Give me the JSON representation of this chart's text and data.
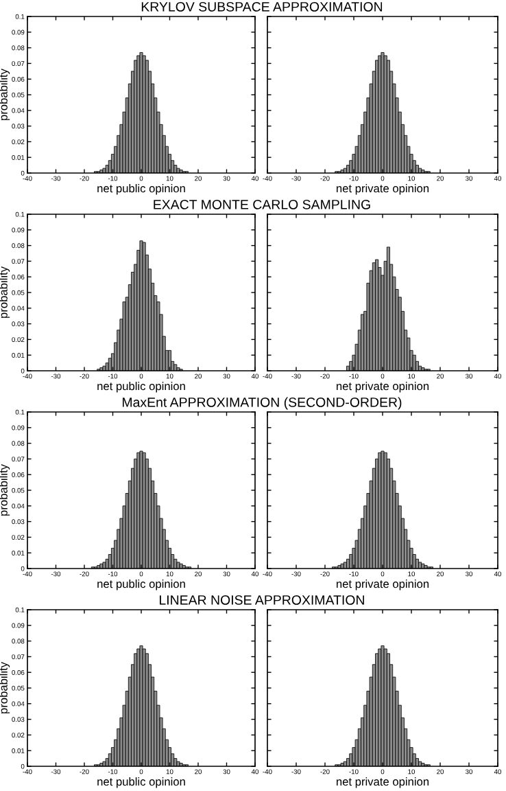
{
  "chart_data": [
    {
      "type": "histogram",
      "title": "KRYLOV SUBSPACE APPROXIMATION",
      "xlabel": "net public opinion",
      "ylabel": "probability",
      "color": "#8c8c8c",
      "xlim": [
        -40,
        40
      ],
      "ylim": [
        0,
        0.1
      ],
      "xticks": [
        -40,
        -30,
        -20,
        -10,
        0,
        10,
        20,
        30,
        40
      ],
      "yticks": [
        0,
        0.01,
        0.02,
        0.03,
        0.04,
        0.05,
        0.06,
        0.07,
        0.08,
        0.09,
        0.1
      ],
      "bins": [
        -16.5,
        -15.5,
        -14.5,
        -13.5,
        -12.5,
        -11.5,
        -10.5,
        -9.5,
        -8.5,
        -7.5,
        -6.5,
        -5.5,
        -4.5,
        -3.5,
        -2.5,
        -1.5,
        -0.5,
        0.5,
        1.5,
        2.5,
        3.5,
        4.5,
        5.5,
        6.5,
        7.5,
        8.5,
        9.5,
        10.5,
        11.5,
        12.5,
        13.5,
        14.5,
        15.5,
        16.5
      ],
      "values": [
        0.001,
        0.001,
        0.002,
        0.003,
        0.005,
        0.008,
        0.012,
        0.017,
        0.024,
        0.031,
        0.039,
        0.048,
        0.057,
        0.065,
        0.072,
        0.075,
        0.077,
        0.075,
        0.072,
        0.065,
        0.057,
        0.048,
        0.039,
        0.031,
        0.024,
        0.017,
        0.012,
        0.008,
        0.005,
        0.003,
        0.002,
        0.001,
        0.001
      ]
    },
    {
      "type": "histogram",
      "xlabel": "net private opinion",
      "color": "#8c8c8c",
      "xlim": [
        -40,
        40
      ],
      "ylim": [
        0,
        0.1
      ],
      "xticks": [
        -40,
        -30,
        -20,
        -10,
        0,
        10,
        20,
        30,
        40
      ],
      "yticks": [
        0,
        0.01,
        0.02,
        0.03,
        0.04,
        0.05,
        0.06,
        0.07,
        0.08,
        0.09,
        0.1
      ],
      "tick_labels": "x",
      "bins": [
        -16.5,
        -15.5,
        -14.5,
        -13.5,
        -12.5,
        -11.5,
        -10.5,
        -9.5,
        -8.5,
        -7.5,
        -6.5,
        -5.5,
        -4.5,
        -3.5,
        -2.5,
        -1.5,
        -0.5,
        0.5,
        1.5,
        2.5,
        3.5,
        4.5,
        5.5,
        6.5,
        7.5,
        8.5,
        9.5,
        10.5,
        11.5,
        12.5,
        13.5,
        14.5,
        15.5,
        16.5
      ],
      "values": [
        0.001,
        0.001,
        0.002,
        0.003,
        0.005,
        0.008,
        0.012,
        0.017,
        0.024,
        0.031,
        0.039,
        0.048,
        0.057,
        0.065,
        0.072,
        0.075,
        0.077,
        0.075,
        0.072,
        0.065,
        0.057,
        0.048,
        0.039,
        0.031,
        0.024,
        0.017,
        0.012,
        0.008,
        0.005,
        0.003,
        0.002,
        0.001,
        0.001
      ]
    },
    {
      "type": "histogram",
      "title": "EXACT MONTE CARLO SAMPLING",
      "xlabel": "net public opinion",
      "ylabel": "probability",
      "color": "#8c8c8c",
      "xlim": [
        -40,
        40
      ],
      "ylim": [
        0,
        0.1
      ],
      "xticks": [
        -40,
        -30,
        -20,
        -10,
        0,
        10,
        20,
        30,
        40
      ],
      "yticks": [
        0,
        0.01,
        0.02,
        0.03,
        0.04,
        0.05,
        0.06,
        0.07,
        0.08,
        0.09,
        0.1
      ],
      "bins": [
        -15.5,
        -14.5,
        -13.5,
        -12.5,
        -11.5,
        -10.5,
        -9.5,
        -8.5,
        -7.5,
        -6.5,
        -5.5,
        -4.5,
        -3.5,
        -2.5,
        -1.5,
        -0.5,
        0.5,
        1.5,
        2.5,
        3.5,
        4.5,
        5.5,
        6.5,
        7.5,
        8.5,
        9.5,
        10.5,
        11.5,
        12.5,
        13.5,
        14.5
      ],
      "values": [
        0.001,
        0.002,
        0.003,
        0.005,
        0.008,
        0.011,
        0.018,
        0.026,
        0.033,
        0.044,
        0.047,
        0.055,
        0.063,
        0.068,
        0.077,
        0.083,
        0.082,
        0.074,
        0.065,
        0.056,
        0.048,
        0.044,
        0.036,
        0.022,
        0.013,
        0.013,
        0.006,
        0.004,
        0.002,
        0.001
      ]
    },
    {
      "type": "histogram",
      "xlabel": "net private opinion",
      "color": "#8c8c8c",
      "xlim": [
        -40,
        40
      ],
      "ylim": [
        0,
        0.1
      ],
      "xticks": [
        -40,
        -30,
        -20,
        -10,
        0,
        10,
        20,
        30,
        40
      ],
      "yticks": [
        0,
        0.01,
        0.02,
        0.03,
        0.04,
        0.05,
        0.06,
        0.07,
        0.08,
        0.09,
        0.1
      ],
      "tick_labels": "x",
      "bins": [
        -12.5,
        -11.5,
        -10.5,
        -9.5,
        -8.5,
        -7.5,
        -6.5,
        -5.5,
        -4.5,
        -3.5,
        -2.5,
        -1.5,
        -0.5,
        0.5,
        1.5,
        2.5,
        3.5,
        4.5,
        5.5,
        6.5,
        7.5,
        8.5,
        9.5,
        10.5,
        11.5,
        12.5,
        13.5,
        14.5,
        15.5,
        16.5
      ],
      "values": [
        0.003,
        0.006,
        0.01,
        0.017,
        0.026,
        0.036,
        0.038,
        0.056,
        0.064,
        0.069,
        0.071,
        0.066,
        0.061,
        0.07,
        0.079,
        0.068,
        0.06,
        0.052,
        0.047,
        0.038,
        0.026,
        0.021,
        0.013,
        0.01,
        0.006,
        0.003,
        0.002,
        0.001,
        0.001
      ]
    },
    {
      "type": "histogram",
      "title": "MaxEnt APPROXIMATION (SECOND-ORDER)",
      "xlabel": "net public opinion",
      "ylabel": "probability",
      "color": "#8c8c8c",
      "xlim": [
        -40,
        40
      ],
      "ylim": [
        0,
        0.1
      ],
      "xticks": [
        -40,
        -30,
        -20,
        -10,
        0,
        10,
        20,
        30,
        40
      ],
      "yticks": [
        0,
        0.01,
        0.02,
        0.03,
        0.04,
        0.05,
        0.06,
        0.07,
        0.08,
        0.09,
        0.1
      ],
      "bins": [
        -17.5,
        -16.5,
        -15.5,
        -14.5,
        -13.5,
        -12.5,
        -11.5,
        -10.5,
        -9.5,
        -8.5,
        -7.5,
        -6.5,
        -5.5,
        -4.5,
        -3.5,
        -2.5,
        -1.5,
        -0.5,
        0.5,
        1.5,
        2.5,
        3.5,
        4.5,
        5.5,
        6.5,
        7.5,
        8.5,
        9.5,
        10.5,
        11.5,
        12.5,
        13.5,
        14.5,
        15.5,
        16.5,
        17.5
      ],
      "values": [
        0.001,
        0.001,
        0.002,
        0.003,
        0.004,
        0.006,
        0.009,
        0.013,
        0.018,
        0.025,
        0.032,
        0.04,
        0.048,
        0.056,
        0.064,
        0.07,
        0.074,
        0.075,
        0.074,
        0.07,
        0.064,
        0.056,
        0.048,
        0.04,
        0.032,
        0.025,
        0.018,
        0.013,
        0.009,
        0.006,
        0.004,
        0.003,
        0.002,
        0.001,
        0.001
      ]
    },
    {
      "type": "histogram",
      "xlabel": "net private opinion",
      "color": "#8c8c8c",
      "xlim": [
        -40,
        40
      ],
      "ylim": [
        0,
        0.1
      ],
      "xticks": [
        -40,
        -30,
        -20,
        -10,
        0,
        10,
        20,
        30,
        40
      ],
      "yticks": [
        0,
        0.01,
        0.02,
        0.03,
        0.04,
        0.05,
        0.06,
        0.07,
        0.08,
        0.09,
        0.1
      ],
      "tick_labels": "x",
      "bins": [
        -17.5,
        -16.5,
        -15.5,
        -14.5,
        -13.5,
        -12.5,
        -11.5,
        -10.5,
        -9.5,
        -8.5,
        -7.5,
        -6.5,
        -5.5,
        -4.5,
        -3.5,
        -2.5,
        -1.5,
        -0.5,
        0.5,
        1.5,
        2.5,
        3.5,
        4.5,
        5.5,
        6.5,
        7.5,
        8.5,
        9.5,
        10.5,
        11.5,
        12.5,
        13.5,
        14.5,
        15.5,
        16.5,
        17.5
      ],
      "values": [
        0.001,
        0.001,
        0.002,
        0.003,
        0.004,
        0.006,
        0.009,
        0.013,
        0.018,
        0.025,
        0.032,
        0.04,
        0.048,
        0.056,
        0.064,
        0.07,
        0.074,
        0.075,
        0.074,
        0.07,
        0.064,
        0.056,
        0.048,
        0.04,
        0.032,
        0.025,
        0.018,
        0.013,
        0.009,
        0.006,
        0.004,
        0.003,
        0.002,
        0.001,
        0.001
      ]
    },
    {
      "type": "histogram",
      "title": "LINEAR NOISE APPROXIMATION",
      "xlabel": "net public opinion",
      "ylabel": "probability",
      "color": "#8c8c8c",
      "xlim": [
        -40,
        40
      ],
      "ylim": [
        0,
        0.1
      ],
      "xticks": [
        -40,
        -30,
        -20,
        -10,
        0,
        10,
        20,
        30,
        40
      ],
      "yticks": [
        0,
        0.01,
        0.02,
        0.03,
        0.04,
        0.05,
        0.06,
        0.07,
        0.08,
        0.09,
        0.1
      ],
      "bins": [
        -16.5,
        -15.5,
        -14.5,
        -13.5,
        -12.5,
        -11.5,
        -10.5,
        -9.5,
        -8.5,
        -7.5,
        -6.5,
        -5.5,
        -4.5,
        -3.5,
        -2.5,
        -1.5,
        -0.5,
        0.5,
        1.5,
        2.5,
        3.5,
        4.5,
        5.5,
        6.5,
        7.5,
        8.5,
        9.5,
        10.5,
        11.5,
        12.5,
        13.5,
        14.5,
        15.5,
        16.5
      ],
      "values": [
        0.001,
        0.001,
        0.002,
        0.003,
        0.005,
        0.008,
        0.012,
        0.017,
        0.024,
        0.031,
        0.039,
        0.048,
        0.057,
        0.065,
        0.072,
        0.075,
        0.077,
        0.075,
        0.072,
        0.065,
        0.057,
        0.048,
        0.039,
        0.031,
        0.024,
        0.017,
        0.012,
        0.008,
        0.005,
        0.003,
        0.002,
        0.001,
        0.001
      ]
    },
    {
      "type": "histogram",
      "xlabel": "net private opinion",
      "color": "#8c8c8c",
      "xlim": [
        -40,
        40
      ],
      "ylim": [
        0,
        0.1
      ],
      "xticks": [
        -40,
        -30,
        -20,
        -10,
        0,
        10,
        20,
        30,
        40
      ],
      "yticks": [
        0,
        0.01,
        0.02,
        0.03,
        0.04,
        0.05,
        0.06,
        0.07,
        0.08,
        0.09,
        0.1
      ],
      "tick_labels": "x",
      "bins": [
        -16.5,
        -15.5,
        -14.5,
        -13.5,
        -12.5,
        -11.5,
        -10.5,
        -9.5,
        -8.5,
        -7.5,
        -6.5,
        -5.5,
        -4.5,
        -3.5,
        -2.5,
        -1.5,
        -0.5,
        0.5,
        1.5,
        2.5,
        3.5,
        4.5,
        5.5,
        6.5,
        7.5,
        8.5,
        9.5,
        10.5,
        11.5,
        12.5,
        13.5,
        14.5,
        15.5,
        16.5
      ],
      "values": [
        0.001,
        0.001,
        0.002,
        0.003,
        0.005,
        0.008,
        0.012,
        0.017,
        0.024,
        0.031,
        0.039,
        0.048,
        0.057,
        0.065,
        0.072,
        0.075,
        0.077,
        0.075,
        0.072,
        0.065,
        0.057,
        0.048,
        0.039,
        0.031,
        0.024,
        0.017,
        0.012,
        0.008,
        0.005,
        0.003,
        0.002,
        0.001,
        0.001
      ]
    }
  ]
}
